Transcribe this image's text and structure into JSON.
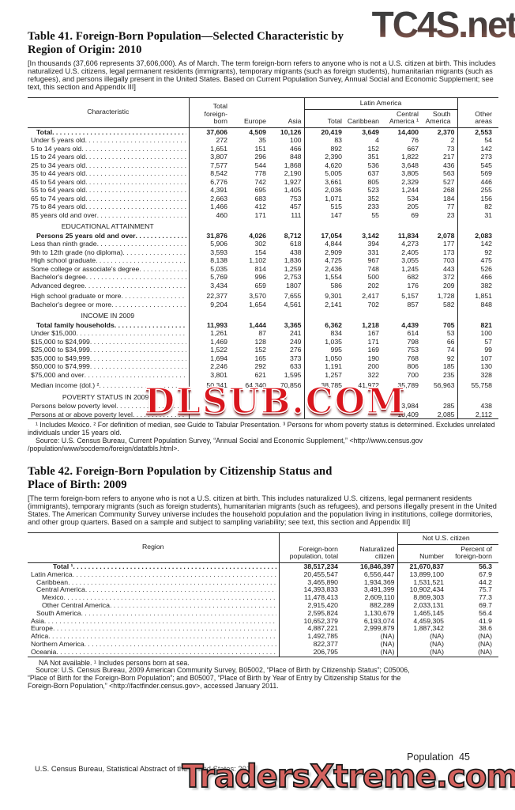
{
  "watermarks": {
    "top_right": "TC4S.net",
    "middle": "DLSUB.COM",
    "bottom": "TradersXtreme.com"
  },
  "colors": {
    "dlsub_red": "#d9161d",
    "traders_red": "#d4625e",
    "tc4s_gray": "#3f3f3f",
    "tc4s_brown": "#8a5a50"
  },
  "footer": {
    "page_label": "Population  45",
    "source_line": "U.S. Census Bureau, Statistical Abstract of the United States: 2012"
  },
  "table41": {
    "title1": "Table 41. Foreign-Born Population—Selected Characteristic by",
    "title2": "Region of Origin: 2010",
    "note": "[In thousands (37,606 represents 37,606,000). As of March. The term foreign-born refers to anyone who is not a U.S. citizen at birth. This includes naturalized U.S. citizens, legal permanent residents (immigrants), temporary migrants (such as foreign students), humanitarian migrants (such as refugees), and persons illegally present in the United States. Based on Current Population Survey, Annual Social and Economic Supplement; see text, this section and Appendix III]",
    "headers": {
      "characteristic": "Characteristic",
      "total_foreign_born": "Total foreign-born",
      "europe": "Europe",
      "asia": "Asia",
      "latin_america": "Latin America",
      "la_total": "Total",
      "caribbean": "Caribbean",
      "central_america": "Central America ¹",
      "south_america": "South America",
      "other_areas": "Other areas"
    },
    "rows": [
      {
        "label": "Total",
        "bold": true,
        "indent": 1,
        "values": [
          "37,606",
          "4,509",
          "10,126",
          "20,419",
          "3,649",
          "14,400",
          "2,370",
          "2,553"
        ]
      },
      {
        "label": "Under 5 years old",
        "values": [
          "272",
          "35",
          "100",
          "83",
          "4",
          "76",
          "2",
          "54"
        ]
      },
      {
        "label": "5 to 14 years old",
        "values": [
          "1,651",
          "151",
          "466",
          "892",
          "152",
          "667",
          "73",
          "142"
        ]
      },
      {
        "label": "15 to 24 years old",
        "values": [
          "3,807",
          "296",
          "848",
          "2,390",
          "351",
          "1,822",
          "217",
          "273"
        ]
      },
      {
        "label": "25 to 34 years old",
        "values": [
          "7,577",
          "544",
          "1,868",
          "4,620",
          "536",
          "3,648",
          "436",
          "545"
        ]
      },
      {
        "label": "35 to 44 years old",
        "values": [
          "8,542",
          "778",
          "2,190",
          "5,005",
          "637",
          "3,805",
          "563",
          "569"
        ]
      },
      {
        "label": "45 to 54 years old",
        "values": [
          "6,776",
          "742",
          "1,927",
          "3,661",
          "805",
          "2,329",
          "527",
          "446"
        ]
      },
      {
        "label": "55 to 64 years old",
        "values": [
          "4,391",
          "695",
          "1,405",
          "2,036",
          "523",
          "1,244",
          "268",
          "255"
        ]
      },
      {
        "label": "65 to 74 years old",
        "values": [
          "2,663",
          "683",
          "753",
          "1,071",
          "352",
          "534",
          "184",
          "156"
        ]
      },
      {
        "label": "75 to 84 years old",
        "values": [
          "1,466",
          "412",
          "457",
          "515",
          "233",
          "205",
          "77",
          "82"
        ]
      },
      {
        "label": "85 years old and over",
        "values": [
          "460",
          "171",
          "111",
          "147",
          "55",
          "69",
          "23",
          "31"
        ]
      },
      {
        "section": true,
        "label": "EDUCATIONAL ATTAINMENT"
      },
      {
        "label": "Persons 25 years old and over",
        "bold": true,
        "indent": 1,
        "values": [
          "31,876",
          "4,026",
          "8,712",
          "17,054",
          "3,142",
          "11,834",
          "2,078",
          "2,083"
        ]
      },
      {
        "label": "Less than ninth grade",
        "values": [
          "5,906",
          "302",
          "618",
          "4,844",
          "394",
          "4,273",
          "177",
          "142"
        ]
      },
      {
        "label": "9th to 12th grade (no diploma)",
        "values": [
          "3,593",
          "154",
          "438",
          "2,909",
          "331",
          "2,405",
          "173",
          "92"
        ]
      },
      {
        "label": "High school graduate",
        "values": [
          "8,138",
          "1,102",
          "1,836",
          "4,725",
          "967",
          "3,055",
          "703",
          "475"
        ]
      },
      {
        "label": "Some college or associate's degree",
        "values": [
          "5,035",
          "814",
          "1,259",
          "2,436",
          "748",
          "1,245",
          "443",
          "526"
        ]
      },
      {
        "label": "Bachelor's degree",
        "values": [
          "5,769",
          "996",
          "2,753",
          "1,554",
          "500",
          "682",
          "372",
          "466"
        ]
      },
      {
        "label": "Advanced degree",
        "values": [
          "3,434",
          "659",
          "1807",
          "586",
          "202",
          "176",
          "209",
          "382"
        ]
      },
      {
        "label": "High school graduate or more",
        "gap": true,
        "values": [
          "22,377",
          "3,570",
          "7,655",
          "9,301",
          "2,417",
          "5,157",
          "1,728",
          "1,851"
        ]
      },
      {
        "label": "Bachelor's degree or more",
        "values": [
          "9,204",
          "1,654",
          "4,561",
          "2,141",
          "702",
          "857",
          "582",
          "848"
        ]
      },
      {
        "section": true,
        "label": "INCOME IN 2009"
      },
      {
        "label": "Total family households",
        "bold": true,
        "indent": 1,
        "values": [
          "11,993",
          "1,444",
          "3,365",
          "6,362",
          "1,218",
          "4,439",
          "705",
          "821"
        ]
      },
      {
        "label": "Under $15,000",
        "values": [
          "1,261",
          "87",
          "241",
          "834",
          "167",
          "614",
          "53",
          "100"
        ]
      },
      {
        "label": "$15,000 to $24,999",
        "values": [
          "1,469",
          "128",
          "249",
          "1,035",
          "171",
          "798",
          "66",
          "57"
        ]
      },
      {
        "label": "$25,000 to $34,999",
        "values": [
          "1,522",
          "152",
          "276",
          "995",
          "169",
          "753",
          "74",
          "99"
        ]
      },
      {
        "label": "$35,000 to $49,999",
        "values": [
          "1,694",
          "165",
          "373",
          "1,050",
          "190",
          "768",
          "92",
          "107"
        ]
      },
      {
        "label": "$50,000 to $74,999",
        "values": [
          "2,246",
          "292",
          "633",
          "1,191",
          "200",
          "806",
          "185",
          "130"
        ]
      },
      {
        "label": "$75,000 and over",
        "values": [
          "3,801",
          "621",
          "1,595",
          "1,257",
          "322",
          "700",
          "235",
          "328"
        ]
      },
      {
        "label": "Median income (dol.) ²",
        "gap": true,
        "values": [
          "50,341",
          "64,340",
          "70,856",
          "38,785",
          "41,972",
          "35,789",
          "56,963",
          "55,758"
        ]
      },
      {
        "section": true,
        "label": "POVERTY STATUS IN 2009 ³"
      },
      {
        "label": "Persons below poverty level",
        "values": [
          "",
          "",
          "",
          "",
          "",
          "3,984",
          "285",
          "438"
        ]
      },
      {
        "label": "Persons at or above poverty level",
        "values": [
          "",
          "",
          "",
          "",
          "",
          "10,409",
          "2,085",
          "2,112"
        ]
      }
    ],
    "footnote": "¹ Includes Mexico. ² For definition of median, see Guide to Tabular Presentation. ³ Persons for whom poverty status is determined. Excludes unrelated individuals under 15 years old.",
    "source_lines": [
      "Source: U.S. Census Bureau, Current Population Survey, “Annual Social and Economic Supplement,” <http://www.census.gov",
      "/population/www/socdemo/foreign/datatbls.html>."
    ]
  },
  "table42": {
    "title1": "Table 42. Foreign-Born Population by Citizenship Status and",
    "title2": "Place of Birth: 2009",
    "note": "[The term foreign-born refers to anyone who is not a U.S. citizen at birth. This includes naturalized U.S. citizens, legal permanent residents (immigrants), temporary migrants (such as foreign students), humanitarian migrants (such as refugees), and persons illegally present in the United States. The American Community Survey universe includes the household population and the population living in institutions, college dormitories, and other group quarters. Based on a sample and subject to sampling variability; see text, this section and Appendix III]",
    "headers": {
      "region": "Region",
      "fb_total": "Foreign-born population, total",
      "naturalized": "Naturalized citizen",
      "not_citizen": "Not U.S. citizen",
      "number": "Number",
      "percent": "Percent of foreign-born"
    },
    "rows": [
      {
        "label": "Total ¹",
        "bold": true,
        "indent": 4,
        "values": [
          "38,517,234",
          "16,846,397",
          "21,670,837",
          "56.3"
        ]
      },
      {
        "label": "Latin America",
        "values": [
          "20,455,547",
          "6,556,447",
          "13,899,100",
          "67.9"
        ]
      },
      {
        "label": "Caribbean",
        "indent": 1,
        "values": [
          "3,465,890",
          "1,934,369",
          "1,531,521",
          "44.2"
        ]
      },
      {
        "label": "Central America",
        "indent": 1,
        "values": [
          "14,393,833",
          "3,491,399",
          "10,902,434",
          "75.7"
        ]
      },
      {
        "label": "Mexico",
        "indent": 2,
        "values": [
          "11,478,413",
          "2,609,110",
          "8,869,303",
          "77.3"
        ]
      },
      {
        "label": "Other Central America",
        "indent": 2,
        "values": [
          "2,915,420",
          "882,289",
          "2,033,131",
          "69.7"
        ]
      },
      {
        "label": "South America",
        "indent": 1,
        "values": [
          "2,595,824",
          "1,130,679",
          "1,465,145",
          "56.4"
        ]
      },
      {
        "label": "Asia",
        "values": [
          "10,652,379",
          "6,193,074",
          "4,459,305",
          "41.9"
        ]
      },
      {
        "label": "Europe",
        "values": [
          "4,887,221",
          "2,999,879",
          "1,887,342",
          "38.6"
        ]
      },
      {
        "label": "Africa",
        "values": [
          "1,492,785",
          "(NA)",
          "(NA)",
          "(NA)"
        ]
      },
      {
        "label": "Northern America",
        "values": [
          "822,377",
          "(NA)",
          "(NA)",
          "(NA)"
        ]
      },
      {
        "label": "Oceania",
        "values": [
          "206,795",
          "(NA)",
          "(NA)",
          "(NA)"
        ]
      }
    ],
    "footnote": "NA Not available. ¹ Includes persons born at sea.",
    "source_lines": [
      "Source: U.S. Census Bureau, 2009 American Community Survey, B05002, “Place of Birth by Citizenship Status”; C05006,",
      "“Place of Birth for the Foreign-Born Population”; and B05007, “Place of Birth by Year of Entry by Citizenship Status for the",
      "Foreign-Born Population,” <http://factfinder.census.gov>, accessed January 2011."
    ]
  }
}
